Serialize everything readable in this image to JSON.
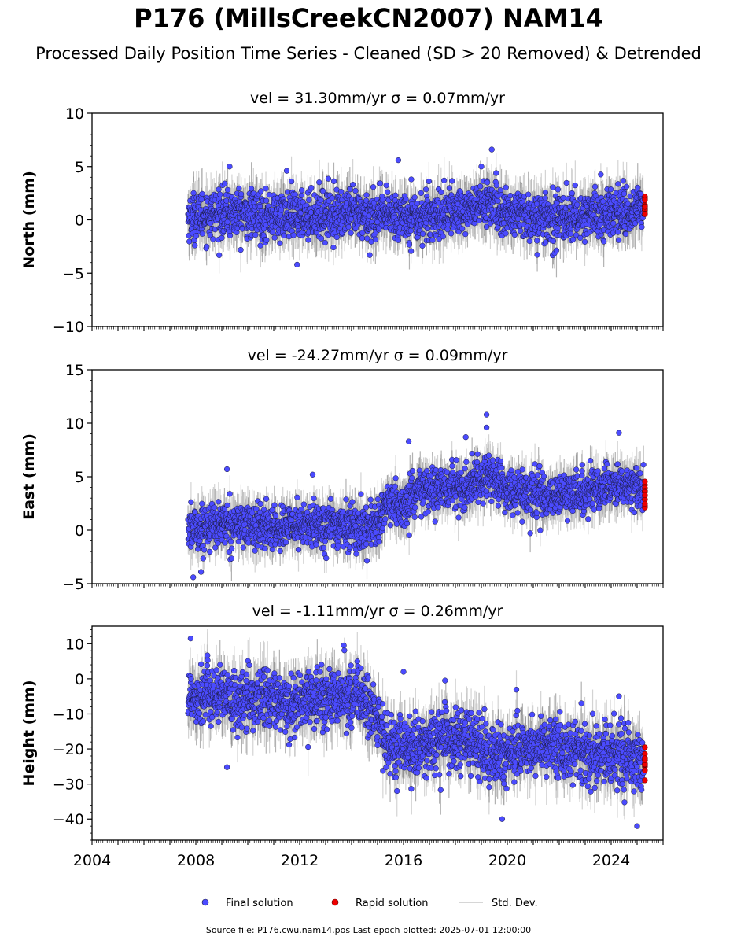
{
  "figure": {
    "title": "P176 (MillsCreekCN2007) NAM14",
    "subtitle": "Processed Daily Position Time Series - Cleaned (SD > 20 Removed) & Detrended",
    "source_note": "Source file: P176.cwu.nam14.pos  Last epoch plotted: 2025-07-01 12:00:00"
  },
  "colors": {
    "final": "#4b4bff",
    "final_edge": "#1a1a3a",
    "rapid": "#ee0000",
    "stddev": "#c8c8c8",
    "stddev_dense": "#555555"
  },
  "chart_data": [
    {
      "type": "scatter",
      "title": "vel = 31.30mm/yr   σ = 0.07mm/yr",
      "ylabel": "North (mm)",
      "xlim": [
        2004,
        2026
      ],
      "ylim": [
        -10,
        10
      ],
      "yticks": [
        -10,
        -5,
        0,
        5,
        10
      ],
      "ytick_labels": [
        "−10",
        "−5",
        "0",
        "5",
        "10"
      ],
      "data_start": 2007.7,
      "final_end": 2025.25,
      "series": [
        {
          "role": "final",
          "x": [
            2007.7,
            2008.5,
            2009.5,
            2010.5,
            2011.5,
            2012.5,
            2013.5,
            2014.5,
            2015.5,
            2016.5,
            2017.5,
            2018.5,
            2019.3,
            2019.6,
            2020.5,
            2021.5,
            2022.5,
            2023.5,
            2024.5,
            2025.2
          ],
          "y": [
            0.3,
            0.5,
            0.6,
            0.4,
            0.3,
            0.5,
            0.6,
            0.4,
            0.5,
            0.2,
            0.6,
            1.0,
            1.8,
            0.8,
            0.4,
            0.1,
            0.3,
            0.5,
            0.8,
            1.2
          ]
        },
        {
          "role": "rapid",
          "x": [
            2025.3
          ],
          "y": [
            1.6
          ]
        }
      ],
      "scatter_sd": 1.1,
      "errbar_half": 1.8,
      "outliers": [
        [
          2009.3,
          5.0
        ],
        [
          2011.5,
          4.6
        ],
        [
          2015.8,
          5.6
        ],
        [
          2019.4,
          6.6
        ],
        [
          2019.0,
          5.0
        ],
        [
          2011.9,
          -4.2
        ],
        [
          2014.7,
          -3.3
        ],
        [
          2016.3,
          3.8
        ]
      ]
    },
    {
      "type": "scatter",
      "title": "vel = -24.27mm/yr   σ = 0.09mm/yr",
      "ylabel": "East (mm)",
      "xlim": [
        2004,
        2026
      ],
      "ylim": [
        -5,
        15
      ],
      "yticks": [
        -5,
        0,
        5,
        10,
        15
      ],
      "ytick_labels": [
        "−5",
        "0",
        "5",
        "10",
        "15"
      ],
      "data_start": 2007.7,
      "final_end": 2025.25,
      "series": [
        {
          "role": "final",
          "x": [
            2007.7,
            2008.5,
            2009.5,
            2010.5,
            2011.5,
            2012.5,
            2013.5,
            2014.5,
            2015.0,
            2015.5,
            2016.0,
            2016.5,
            2017.5,
            2018.5,
            2019.2,
            2019.8,
            2020.5,
            2021.5,
            2022.5,
            2023.5,
            2024.5,
            2025.2
          ],
          "y": [
            0.0,
            0.5,
            0.6,
            0.2,
            0.3,
            0.5,
            0.4,
            0.2,
            0.8,
            2.5,
            2.0,
            3.6,
            3.8,
            4.0,
            5.2,
            4.0,
            3.5,
            3.2,
            3.3,
            4.0,
            4.2,
            3.8
          ]
        },
        {
          "role": "rapid",
          "x": [
            2025.3
          ],
          "y": [
            3.2
          ]
        }
      ],
      "scatter_sd": 1.0,
      "errbar_half": 1.6,
      "outliers": [
        [
          2009.2,
          5.7
        ],
        [
          2012.5,
          5.2
        ],
        [
          2016.2,
          8.3
        ],
        [
          2019.2,
          10.8
        ],
        [
          2019.2,
          9.6
        ],
        [
          2018.4,
          8.7
        ],
        [
          2024.3,
          9.1
        ],
        [
          2007.9,
          -4.4
        ],
        [
          2008.2,
          -3.9
        ]
      ]
    },
    {
      "type": "scatter",
      "title": "vel = -1.11mm/yr   σ = 0.26mm/yr",
      "ylabel": "Height (mm)",
      "xlim": [
        2004,
        2026
      ],
      "ylim": [
        -46,
        15
      ],
      "yticks": [
        -40,
        -30,
        -20,
        -10,
        0,
        10
      ],
      "ytick_labels": [
        "−40",
        "−30",
        "−20",
        "−10",
        "0",
        "10"
      ],
      "xticks": [
        2004,
        2008,
        2012,
        2016,
        2020,
        2024
      ],
      "xtick_labels": [
        "2004",
        "2008",
        "2012",
        "2016",
        "2020",
        "2024"
      ],
      "data_start": 2007.7,
      "final_end": 2025.25,
      "series": [
        {
          "role": "final",
          "x": [
            2007.7,
            2008.5,
            2009.5,
            2010.5,
            2011.5,
            2012.5,
            2013.5,
            2014.3,
            2015.0,
            2015.5,
            2016.5,
            2017.5,
            2018.5,
            2019.5,
            2020.5,
            2021.5,
            2022.5,
            2023.5,
            2024.5,
            2025.2
          ],
          "y": [
            -5,
            -4,
            -7,
            -5,
            -8,
            -5,
            -6,
            -4,
            -12,
            -20,
            -20,
            -17,
            -18,
            -22,
            -20,
            -19,
            -20,
            -22,
            -22,
            -24
          ]
        },
        {
          "role": "rapid",
          "x": [
            2025.3
          ],
          "y": [
            -23
          ]
        }
      ],
      "scatter_sd": 4.2,
      "errbar_half": 6.0,
      "outliers": [
        [
          2007.8,
          11.5
        ],
        [
          2009.2,
          -25.2
        ],
        [
          2013.7,
          9.5
        ],
        [
          2016.0,
          2.0
        ],
        [
          2017.6,
          -0.5
        ],
        [
          2025.0,
          -42
        ],
        [
          2019.8,
          -40
        ],
        [
          2024.3,
          -5
        ]
      ]
    }
  ],
  "legend": {
    "final_label": "Final solution",
    "rapid_label": "Rapid solution",
    "sd_label": "Std. Dev.",
    "placement": "bottom-center"
  }
}
